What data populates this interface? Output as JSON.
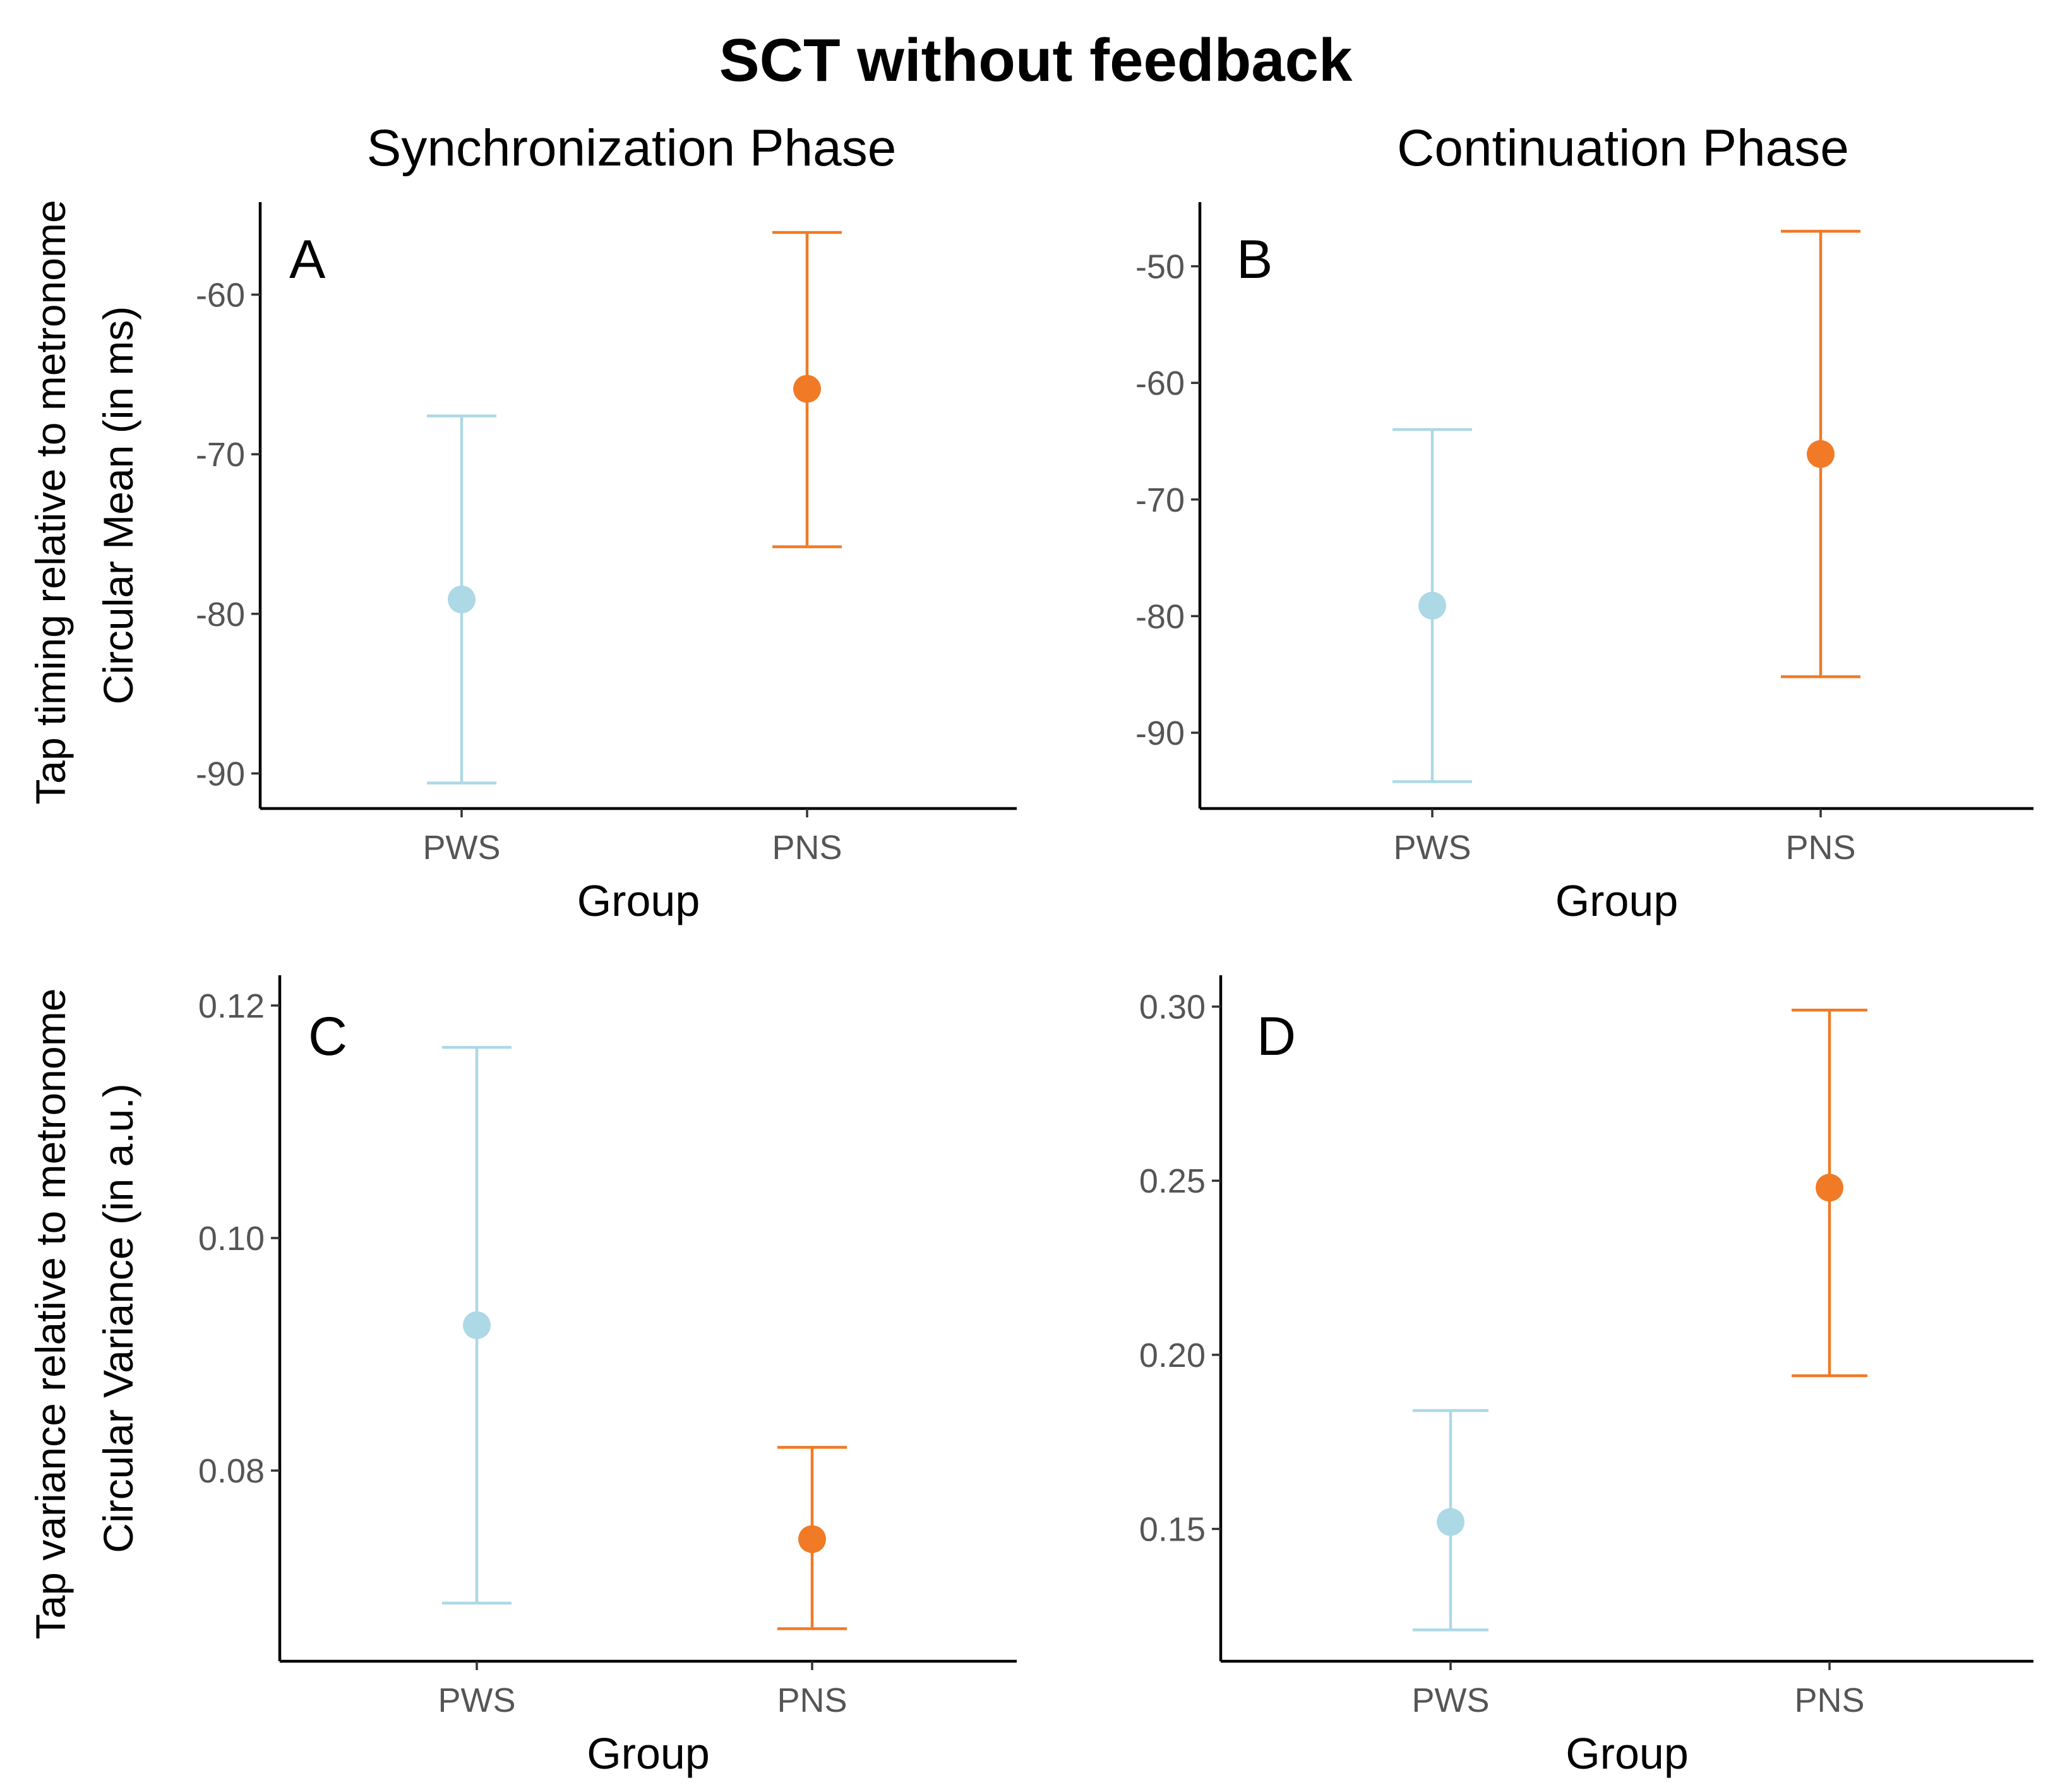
{
  "figure_title": "SCT without feedback",
  "column_titles": [
    "Synchronization Phase",
    "Continuation Phase"
  ],
  "row_outer_ylabels": [
    "Tap timing relative to metronome",
    "Tap variance relative to metronome"
  ],
  "colors": {
    "PWS": "#add8e6",
    "PNS": "#f07a26"
  },
  "chart_data": [
    {
      "type": "scatter",
      "panel": "A",
      "title": "Synchronization Phase",
      "xlabel": "Group",
      "ylabel": "Circular Mean (in ms)",
      "categories": [
        "PWS",
        "PNS"
      ],
      "ylim": [
        -92.2,
        -54.2
      ],
      "yticks": [
        -60,
        -70,
        -80,
        -90
      ],
      "ytick_labels": [
        "-60",
        "-70",
        "-80",
        "-90"
      ],
      "series": [
        {
          "name": "PWS",
          "mean": -79.1,
          "lower": -90.6,
          "upper": -67.6
        },
        {
          "name": "PNS",
          "mean": -65.9,
          "lower": -75.8,
          "upper": -56.1
        }
      ]
    },
    {
      "type": "scatter",
      "panel": "B",
      "title": "Continuation Phase",
      "xlabel": "Group",
      "ylabel": "",
      "categories": [
        "PWS",
        "PNS"
      ],
      "ylim": [
        -96.5,
        -44.5
      ],
      "yticks": [
        -50,
        -60,
        -70,
        -80,
        -90
      ],
      "ytick_labels": [
        "-50",
        "-60",
        "-70",
        "-80",
        "-90"
      ],
      "series": [
        {
          "name": "PWS",
          "mean": -79.1,
          "lower": -94.2,
          "upper": -64.0
        },
        {
          "name": "PNS",
          "mean": -66.1,
          "lower": -85.2,
          "upper": -47.0
        }
      ]
    },
    {
      "type": "scatter",
      "panel": "C",
      "title": "",
      "xlabel": "Group",
      "ylabel": "Circular Variance (in a.u.)",
      "categories": [
        "PWS",
        "PNS"
      ],
      "ylim": [
        0.0636,
        0.1226
      ],
      "yticks": [
        0.12,
        0.1,
        0.08
      ],
      "ytick_labels": [
        "0.12",
        "0.10",
        "0.08"
      ],
      "series": [
        {
          "name": "PWS",
          "mean": 0.0925,
          "lower": 0.0686,
          "upper": 0.1164
        },
        {
          "name": "PNS",
          "mean": 0.0741,
          "lower": 0.0664,
          "upper": 0.082
        }
      ]
    },
    {
      "type": "scatter",
      "panel": "D",
      "title": "",
      "xlabel": "Group",
      "ylabel": "",
      "categories": [
        "PWS",
        "PNS"
      ],
      "ylim": [
        0.112,
        0.309
      ],
      "yticks": [
        0.3,
        0.25,
        0.2,
        0.15
      ],
      "ytick_labels": [
        "0.30",
        "0.25",
        "0.20",
        "0.15"
      ],
      "series": [
        {
          "name": "PWS",
          "mean": 0.152,
          "lower": 0.121,
          "upper": 0.184
        },
        {
          "name": "PNS",
          "mean": 0.248,
          "lower": 0.194,
          "upper": 0.299
        }
      ]
    }
  ]
}
